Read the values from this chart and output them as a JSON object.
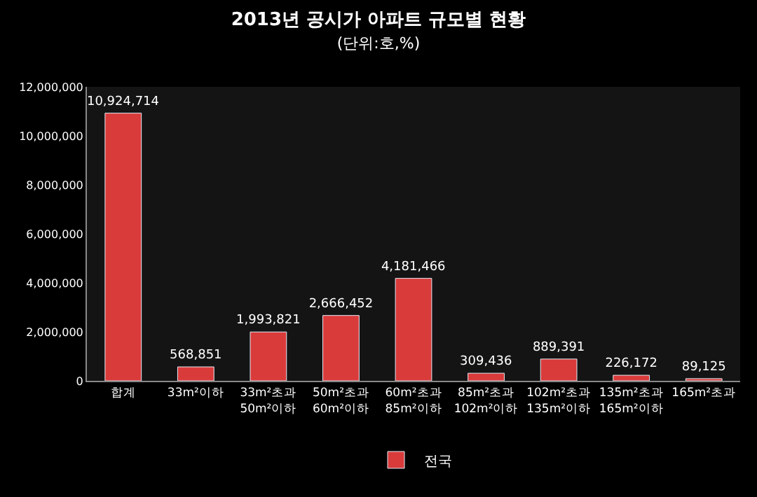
{
  "chart_data": {
    "type": "bar",
    "title": "2013년 공시가 아파트 규모별 현황",
    "subtitle": "(단위:호,%)",
    "categories": [
      "합계",
      "33m²이하",
      "33m²초과\n50m²이하",
      "50m²초과\n60m²이하",
      "60m²초과\n85m²이하",
      "85m²초과\n102m²이하",
      "102m²초과\n135m²이하",
      "135m²초과\n165m²이하",
      "165m²초과"
    ],
    "series": [
      {
        "name": "전국",
        "color": "#d93b3b",
        "values": [
          10924714,
          568851,
          1993821,
          2666452,
          4181466,
          309436,
          889391,
          226172,
          89125
        ]
      }
    ],
    "ylim": [
      0,
      12000000
    ],
    "yticks": [
      {
        "value": 0,
        "label": "0"
      },
      {
        "value": 2000000,
        "label": "2,000,000"
      },
      {
        "value": 4000000,
        "label": "4,000,000"
      },
      {
        "value": 6000000,
        "label": "6,000,000"
      },
      {
        "value": 8000000,
        "label": "8,000,000"
      },
      {
        "value": 10000000,
        "label": "10,000,000"
      },
      {
        "value": 12000000,
        "label": "12,000,000"
      }
    ],
    "value_labels": [
      "10,924,714",
      "568,851",
      "1,993,821",
      "2,666,452",
      "4,181,466",
      "309,436",
      "889,391",
      "226,172",
      "89,125"
    ],
    "grid": false,
    "legend": "bottom"
  }
}
